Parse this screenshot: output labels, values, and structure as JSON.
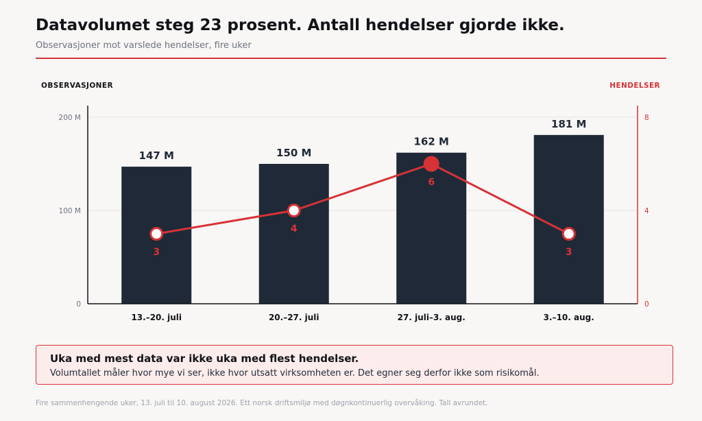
{
  "header": {
    "title": "Datavolumet steg 23 prosent. Antall hendelser gjorde ikke.",
    "subtitle": "Observasjoner mot varslede hendelser, fire uker"
  },
  "chart_data": {
    "type": "bar",
    "categories": [
      "13.–20. juli",
      "20.–27. juli",
      "27. juli–3. aug.",
      "3.–10. aug."
    ],
    "series": [
      {
        "type": "bar",
        "axis": "left",
        "values": [
          147,
          150,
          162,
          181
        ],
        "value_labels": [
          "147 M",
          "150 M",
          "162 M",
          "181 M"
        ],
        "color": "#1f2937"
      },
      {
        "type": "line",
        "axis": "right",
        "values": [
          3,
          4,
          6,
          3
        ],
        "value_labels": [
          "3",
          "4",
          "6",
          "3"
        ],
        "highlight_index": 2,
        "color": "#d63337"
      }
    ],
    "left_axis": {
      "label": "OBSERVASJONER",
      "range": [
        0,
        200
      ],
      "ticks": [
        0,
        100,
        200
      ],
      "tick_labels": [
        "0",
        "100 M",
        "200 M"
      ]
    },
    "right_axis": {
      "label": "HENDELSER",
      "range": [
        0,
        8
      ],
      "ticks": [
        0,
        4,
        8
      ],
      "tick_labels": [
        "0",
        "4",
        "8"
      ],
      "color": "#d63337"
    },
    "grid": true
  },
  "callout": {
    "title": "Uka med mest data var ikke uka med flest hendelser.",
    "body": "Volumtallet måler hvor mye vi ser, ikke hvor utsatt virksomheten er. Det egner seg derfor ikke som risikomål."
  },
  "footnote": "Fire sammenhengende uker, 13. juli til 10. august 2026. Ett norsk driftsmiljø med døgnkontinuerlig overvåking. Tall avrundet.",
  "colors": {
    "accent": "#d63337",
    "bar": "#1f2937",
    "background": "#f9f7f5"
  }
}
